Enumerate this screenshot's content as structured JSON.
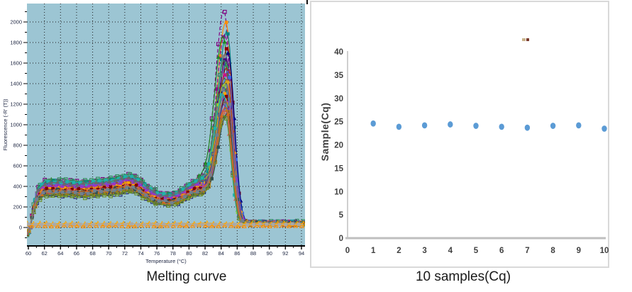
{
  "chart_data": [
    {
      "type": "line",
      "title": "Melting curve",
      "xlabel": "Temperature (°C)",
      "ylabel": "Fluorescence (-R' (T))",
      "xlim": [
        59.8,
        94.45
      ],
      "ylim": [
        -180,
        2180
      ],
      "xticks": [
        60,
        62,
        64,
        66,
        68,
        70,
        72,
        74,
        76,
        78,
        80,
        82,
        84,
        86,
        88,
        90,
        92,
        94
      ],
      "yticks": [
        0,
        200,
        400,
        600,
        800,
        1000,
        1200,
        1400,
        1600,
        1800,
        2000
      ],
      "grid": "dotted",
      "legend": "none",
      "plot_bg": "#9cc5d3",
      "axis_label_color": "#222a45",
      "shape_keypoints": [
        [
          59.8,
          -0.18
        ],
        [
          60.2,
          -0.05
        ],
        [
          60.6,
          0.45
        ],
        [
          61.2,
          0.85
        ],
        [
          62,
          1.0
        ],
        [
          63.5,
          1.02
        ],
        [
          65,
          0.99
        ],
        [
          66.5,
          0.98
        ],
        [
          68,
          1.0
        ],
        [
          69.5,
          1.03
        ],
        [
          71,
          1.07
        ],
        [
          72.5,
          1.12
        ],
        [
          73.5,
          1.08
        ],
        [
          74.5,
          0.95
        ],
        [
          75.5,
          0.8
        ],
        [
          76.5,
          0.73
        ],
        [
          77.5,
          0.72
        ],
        [
          78.5,
          0.76
        ],
        [
          79.5,
          0.86
        ],
        [
          80.5,
          0.98
        ],
        [
          81.2,
          1.02
        ],
        [
          82,
          0.92
        ],
        [
          82.8,
          0.7
        ],
        [
          83.6,
          0.42
        ],
        [
          84.4,
          0.18
        ],
        [
          85.2,
          0.07
        ],
        [
          86,
          0.04
        ],
        [
          86.8,
          0.08
        ],
        [
          87.6,
          0.11
        ],
        [
          88.5,
          0.12
        ],
        [
          94.5,
          0.11
        ]
      ],
      "peak_sigma_left": 1.1,
      "peak_sigma_right": 0.78,
      "series": [
        {
          "color": "#800080",
          "marker": "open-square",
          "plateau": 455,
          "peak": 2020,
          "center": 84.4,
          "seed": 11,
          "dash": true
        },
        {
          "color": "#FF8C00",
          "marker": "square",
          "plateau": 395,
          "peak": 1940,
          "center": 84.6,
          "seed": 12
        },
        {
          "color": "#008080",
          "marker": "square",
          "plateau": 440,
          "peak": 1850,
          "center": 84.75,
          "seed": 13
        },
        {
          "color": "#8B008B",
          "marker": "square",
          "plateau": 430,
          "peak": 1800,
          "center": 84.5,
          "seed": 14,
          "dash": true
        },
        {
          "color": "#228B22",
          "marker": "triangle",
          "plateau": 450,
          "peak": 1760,
          "center": 84.3,
          "seed": 15
        },
        {
          "color": "#8B0000",
          "marker": "square",
          "plateau": 385,
          "peak": 1700,
          "center": 84.8,
          "seed": 16
        },
        {
          "color": "#000080",
          "marker": "triangle",
          "plateau": 330,
          "peak": 1660,
          "center": 84.9,
          "seed": 17
        },
        {
          "color": "#808080",
          "marker": "square",
          "plateau": 445,
          "peak": 1620,
          "center": 84.55,
          "seed": 18
        },
        {
          "color": "#4B0082",
          "marker": "square",
          "plateau": 420,
          "peak": 1580,
          "center": 84.65,
          "seed": 19
        },
        {
          "color": "#2E8B57",
          "marker": "open-square",
          "plateau": 460,
          "peak": 1540,
          "center": 84.45,
          "seed": 20
        },
        {
          "color": "#B22222",
          "marker": "open-triangle",
          "plateau": 375,
          "peak": 1500,
          "center": 84.7,
          "seed": 21
        },
        {
          "color": "#4169E1",
          "marker": "square",
          "plateau": 410,
          "peak": 1470,
          "center": 84.85,
          "seed": 22
        },
        {
          "color": "#C71585",
          "marker": "square",
          "plateau": 425,
          "peak": 1430,
          "center": 84.6,
          "seed": 23
        },
        {
          "color": "#556B2F",
          "marker": "open-triangle",
          "plateau": 320,
          "peak": 1400,
          "center": 84.5,
          "seed": 24
        },
        {
          "color": "#DAA520",
          "marker": "diamond",
          "plateau": 390,
          "peak": 1380,
          "center": 84.75,
          "seed": 25
        },
        {
          "color": "#191970",
          "marker": "open-square",
          "plateau": 310,
          "peak": 1350,
          "center": 84.6,
          "seed": 26
        },
        {
          "color": "#9ACD32",
          "marker": "square",
          "plateau": 365,
          "peak": 1320,
          "center": 84.4,
          "seed": 27
        },
        {
          "color": "#A0522D",
          "marker": "triangle",
          "plateau": 400,
          "peak": 1300,
          "center": 84.8,
          "seed": 28
        },
        {
          "color": "#008B8B",
          "marker": "open-square",
          "plateau": 435,
          "peak": 1280,
          "center": 84.55,
          "seed": 29
        },
        {
          "color": "#6A5ACD",
          "marker": "square",
          "plateau": 415,
          "peak": 1260,
          "center": 84.7,
          "seed": 30
        },
        {
          "color": "#FFA500",
          "marker": "square",
          "plateau": 380,
          "peak": 1240,
          "center": 84.5,
          "seed": 31
        },
        {
          "color": "#800000",
          "marker": "square",
          "plateau": 370,
          "peak": 1220,
          "center": 84.65,
          "seed": 32
        },
        {
          "color": "#20B2AA",
          "marker": "square",
          "plateau": 440,
          "peak": 1200,
          "center": 84.35,
          "seed": 33
        },
        {
          "color": "#9932CC",
          "marker": "triangle",
          "plateau": 405,
          "peak": 1180,
          "center": 84.8,
          "seed": 34
        },
        {
          "color": "#696969",
          "marker": "triangle",
          "plateau": 430,
          "peak": 1160,
          "center": 84.6,
          "seed": 35
        },
        {
          "color": "#483D8B",
          "marker": "open-square",
          "plateau": 340,
          "peak": 1140,
          "center": 84.45,
          "seed": 36
        },
        {
          "color": "#B8860B",
          "marker": "open-square",
          "plateau": 330,
          "peak": 1100,
          "center": 84.7,
          "seed": 37
        },
        {
          "color": "#CD5C5C",
          "marker": "open-triangle",
          "plateau": 360,
          "peak": 1080,
          "center": 84.55,
          "seed": 38
        },
        {
          "color": "#2F4F4F",
          "marker": "square",
          "plateau": 350,
          "peak": 1060,
          "center": 84.75,
          "seed": 39
        },
        {
          "color": "#6B8E23",
          "marker": "open-square",
          "plateau": 305,
          "peak": 1040,
          "center": 84.5,
          "seed": 40
        },
        {
          "color": "#D2691E",
          "marker": "triangle",
          "plateau": 355,
          "peak": 1120,
          "center": 84.6,
          "seed": 41
        },
        {
          "color": "#708090",
          "marker": "square",
          "plateau": 345,
          "peak": 1340,
          "center": 84.65,
          "seed": 42
        }
      ],
      "flat_controls": [
        {
          "color": "#FF8C00",
          "marker": "open-triangle",
          "level": 16,
          "seed": 91
        },
        {
          "color": "#FFA500",
          "marker": "open-triangle",
          "level": 38,
          "seed": 92
        },
        {
          "color": "#A9A9A9",
          "marker": "square",
          "level": 30,
          "seed": 93
        }
      ]
    },
    {
      "type": "scatter",
      "title": "10 samples(Cq)",
      "ylabel": "Sample(Cq)",
      "x": [
        1,
        2,
        3,
        4,
        5,
        6,
        7,
        8,
        9,
        10
      ],
      "values": [
        24.6,
        23.9,
        24.2,
        24.4,
        24.1,
        23.9,
        23.7,
        24.1,
        24.2,
        23.5
      ],
      "xlim": [
        0,
        10
      ],
      "ylim": [
        0,
        40
      ],
      "xticks": [
        0,
        1,
        2,
        3,
        4,
        5,
        6,
        7,
        8,
        9,
        10
      ],
      "yticks": [
        0,
        5,
        10,
        15,
        20,
        25,
        30,
        35,
        40
      ],
      "grid": "off",
      "legend": "none",
      "dot_color": "#5B9BD5",
      "axis_color": "#bfbfbf",
      "tick_label_color": "#3f3f3f"
    }
  ]
}
